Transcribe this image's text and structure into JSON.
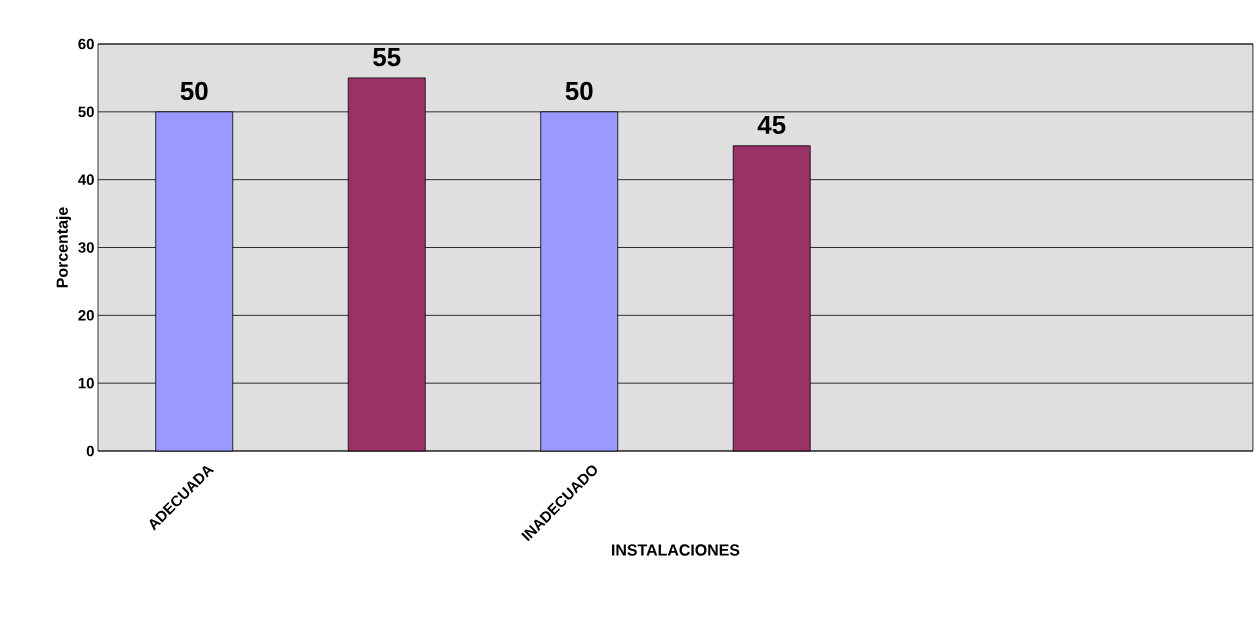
{
  "chart_data": {
    "type": "bar",
    "xlabel": "INSTALACIONES",
    "ylabel": "Porcentaje",
    "categories": [
      "ADECUADA",
      null,
      "INADECUADO",
      null,
      null,
      null
    ],
    "values": [
      50,
      55,
      50,
      45,
      null,
      null
    ],
    "colors": [
      "#9999ff",
      "#993366",
      "#9999ff",
      "#993366",
      null,
      null
    ],
    "ylim": [
      0,
      60
    ],
    "yticks": [
      0,
      10,
      20,
      30,
      40,
      50,
      60
    ],
    "grid": "y",
    "data_labels": true
  }
}
